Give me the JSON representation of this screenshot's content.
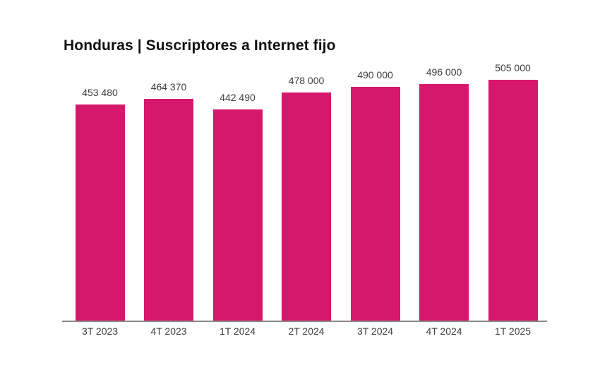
{
  "chart_data": {
    "type": "bar",
    "title": "Honduras | Suscriptores a Internet fijo",
    "categories": [
      "3T 2023",
      "4T 2023",
      "1T 2024",
      "2T 2024",
      "3T 2024",
      "4T 2024",
      "1T 2025"
    ],
    "values": [
      453480,
      464370,
      442490,
      478000,
      490000,
      496000,
      505000
    ],
    "value_labels": [
      "453 480",
      "464 370",
      "442 490",
      "478 000",
      "490 000",
      "496 000",
      "505 000"
    ],
    "xlabel": "",
    "ylabel": "",
    "ylim": [
      0,
      505000
    ],
    "grid": false,
    "legend": false,
    "colors": {
      "bar": "#D6186C",
      "title": "#111111",
      "labels": "#3d3d3d",
      "axis_line": "#8a8a8a",
      "background": "#ffffff"
    }
  }
}
